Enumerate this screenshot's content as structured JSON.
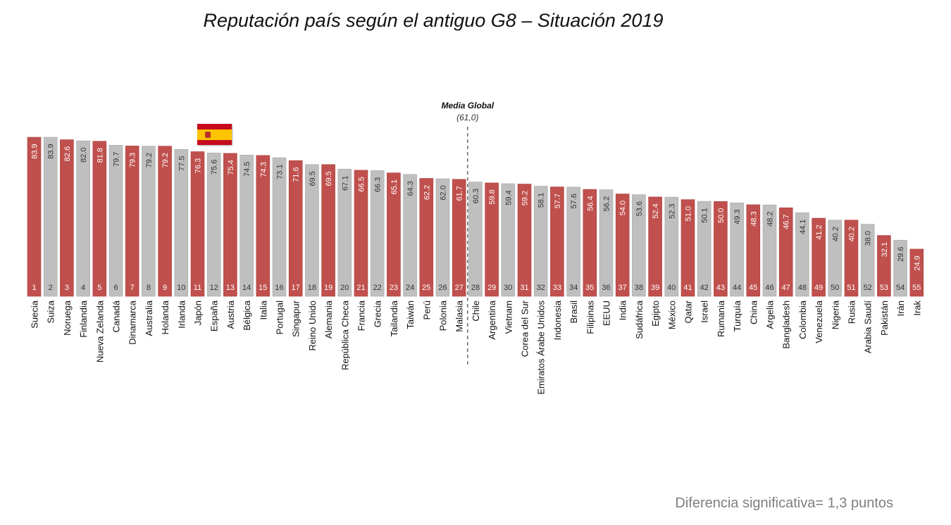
{
  "title": "Reputación país según el antiguo G8 – Situación 2019",
  "footnote": "Diferencia significativa= 1,3 puntos",
  "colors": {
    "red": "#c0504d",
    "gray": "#bfbfbf",
    "red_label": "#ffffff",
    "gray_label": "#333333"
  },
  "flag_icon": "spain-flag-icon",
  "chart_data": {
    "type": "bar",
    "reference_line": {
      "label": "Media Global",
      "value_label": "(61,0)",
      "value": 61.0
    },
    "bars": [
      {
        "rank": "1",
        "country": "Suecia",
        "value": 83.9,
        "group": "red"
      },
      {
        "rank": "2",
        "country": "Suiza",
        "value": 83.9,
        "group": "gray"
      },
      {
        "rank": "3",
        "country": "Noruega",
        "value": 82.6,
        "group": "red"
      },
      {
        "rank": "4",
        "country": "Finlandia",
        "value": 82.0,
        "group": "gray"
      },
      {
        "rank": "5",
        "country": "Nueva Zelanda",
        "value": 81.8,
        "group": "red"
      },
      {
        "rank": "6",
        "country": "Canadá",
        "value": 79.7,
        "group": "gray"
      },
      {
        "rank": "7",
        "country": "Dinamarca",
        "value": 79.3,
        "group": "red"
      },
      {
        "rank": "8",
        "country": "Australia",
        "value": 79.2,
        "group": "gray"
      },
      {
        "rank": "9",
        "country": "Holanda",
        "value": 79.2,
        "group": "red"
      },
      {
        "rank": "10",
        "country": "Irlanda",
        "value": 77.5,
        "group": "gray"
      },
      {
        "rank": "11",
        "country": "Japón",
        "value": 76.3,
        "group": "red"
      },
      {
        "rank": "12",
        "country": "España",
        "value": 75.6,
        "group": "gray"
      },
      {
        "rank": "13",
        "country": "Austria",
        "value": 75.4,
        "group": "red"
      },
      {
        "rank": "14",
        "country": "Bélgica",
        "value": 74.5,
        "group": "gray"
      },
      {
        "rank": "15",
        "country": "Italia",
        "value": 74.3,
        "group": "red"
      },
      {
        "rank": "16",
        "country": "Portugal",
        "value": 73.1,
        "group": "gray"
      },
      {
        "rank": "17",
        "country": "Singapur",
        "value": 71.6,
        "group": "red"
      },
      {
        "rank": "18",
        "country": "Reino Unido",
        "value": 69.5,
        "group": "gray"
      },
      {
        "rank": "19",
        "country": "Alemania",
        "value": 69.5,
        "group": "red"
      },
      {
        "rank": "20",
        "country": "República Checa",
        "value": 67.1,
        "group": "gray"
      },
      {
        "rank": "21",
        "country": "Francia",
        "value": 66.5,
        "group": "red"
      },
      {
        "rank": "22",
        "country": "Grecia",
        "value": 66.3,
        "group": "gray"
      },
      {
        "rank": "23",
        "country": "Tailandia",
        "value": 65.1,
        "group": "red"
      },
      {
        "rank": "24",
        "country": "Taiwán",
        "value": 64.3,
        "group": "gray"
      },
      {
        "rank": "25",
        "country": "Perú",
        "value": 62.2,
        "group": "red"
      },
      {
        "rank": "26",
        "country": "Polonia",
        "value": 62.0,
        "group": "gray"
      },
      {
        "rank": "27",
        "country": "Malasia",
        "value": 61.7,
        "group": "red"
      },
      {
        "rank": "28",
        "country": "Chile",
        "value": 60.3,
        "group": "gray"
      },
      {
        "rank": "29",
        "country": "Argentina",
        "value": 59.8,
        "group": "red"
      },
      {
        "rank": "30",
        "country": "Vietnam",
        "value": 59.4,
        "group": "gray"
      },
      {
        "rank": "31",
        "country": "Corea del Sur",
        "value": 59.2,
        "group": "red"
      },
      {
        "rank": "32",
        "country": "Emiratos Árabe Unidos",
        "value": 58.1,
        "group": "gray"
      },
      {
        "rank": "33",
        "country": "Indonesia",
        "value": 57.7,
        "group": "red"
      },
      {
        "rank": "34",
        "country": "Brasil",
        "value": 57.6,
        "group": "gray"
      },
      {
        "rank": "35",
        "country": "Filipinas",
        "value": 56.4,
        "group": "red"
      },
      {
        "rank": "36",
        "country": "EEUU",
        "value": 56.2,
        "group": "gray"
      },
      {
        "rank": "37",
        "country": "India",
        "value": 54.0,
        "group": "red"
      },
      {
        "rank": "38",
        "country": "Sudáfrica",
        "value": 53.6,
        "group": "gray"
      },
      {
        "rank": "39",
        "country": "Egipto",
        "value": 52.4,
        "group": "red"
      },
      {
        "rank": "40",
        "country": "México",
        "value": 52.3,
        "group": "gray"
      },
      {
        "rank": "41",
        "country": "Qatar",
        "value": 51.0,
        "group": "red"
      },
      {
        "rank": "42",
        "country": "Israel",
        "value": 50.1,
        "group": "gray"
      },
      {
        "rank": "43",
        "country": "Rumania",
        "value": 50.0,
        "group": "red"
      },
      {
        "rank": "44",
        "country": "Turquía",
        "value": 49.3,
        "group": "gray"
      },
      {
        "rank": "45",
        "country": "China",
        "value": 48.3,
        "group": "red"
      },
      {
        "rank": "46",
        "country": "Argelia",
        "value": 48.2,
        "group": "gray"
      },
      {
        "rank": "47",
        "country": "Bangladesh",
        "value": 46.7,
        "group": "red"
      },
      {
        "rank": "48",
        "country": "Colombia",
        "value": 44.1,
        "group": "gray"
      },
      {
        "rank": "49",
        "country": "Venezuela",
        "value": 41.2,
        "group": "red"
      },
      {
        "rank": "50",
        "country": "Nigeria",
        "value": 40.2,
        "group": "gray"
      },
      {
        "rank": "51",
        "country": "Rusia",
        "value": 40.2,
        "group": "red"
      },
      {
        "rank": "52",
        "country": "Arabia Saudí",
        "value": 38.0,
        "group": "gray"
      },
      {
        "rank": "53",
        "country": "Pakistán",
        "value": 32.1,
        "group": "red"
      },
      {
        "rank": "54",
        "country": "Irán",
        "value": 29.6,
        "group": "gray"
      },
      {
        "rank": "55",
        "country": "Irak",
        "value": 24.9,
        "group": "red"
      }
    ]
  }
}
